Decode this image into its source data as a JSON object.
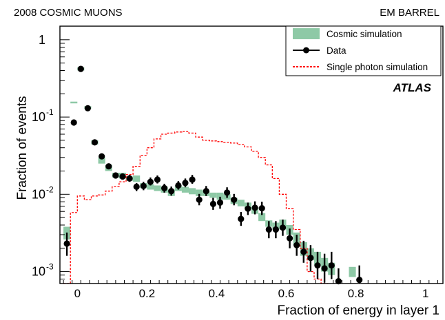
{
  "chart_data": {
    "type": "scatter",
    "corner_left": "2008 COSMIC MUONS",
    "corner_right": "EM BARREL",
    "brand": "ATLAS",
    "xlabel": "Fraction of energy in layer 1",
    "ylabel": "Fraction of events",
    "xlim": [
      -0.05,
      1.05
    ],
    "ylim": [
      0.0007,
      1.5
    ],
    "yscale": "log",
    "xticks": [
      {
        "v": 0,
        "label": "0"
      },
      {
        "v": 0.2,
        "label": "0.2"
      },
      {
        "v": 0.4,
        "label": "0.4"
      },
      {
        "v": 0.6,
        "label": "0.6"
      },
      {
        "v": 0.8,
        "label": "0.8"
      },
      {
        "v": 1.0,
        "label": "1"
      }
    ],
    "yticks": [
      {
        "v": 1,
        "mant": "1",
        "exp": ""
      },
      {
        "v": 0.1,
        "mant": "10",
        "exp": "-1"
      },
      {
        "v": 0.01,
        "mant": "10",
        "exp": "-2"
      },
      {
        "v": 0.001,
        "mant": "10",
        "exp": "-3"
      }
    ],
    "legend_position": "top-right",
    "legend": [
      {
        "label": "Cosmic simulation",
        "style": "box"
      },
      {
        "label": "Data",
        "style": "marker"
      },
      {
        "label": "Single photon simulation",
        "style": "dashed"
      }
    ],
    "colors": {
      "cosmic": "#8ec9a6",
      "data": "#000000",
      "photon": "#ff0000"
    },
    "bin_width": 0.02,
    "cosmic_simulation": [
      {
        "x": -0.03,
        "lo": 0.0026,
        "hi": 0.0038
      },
      {
        "x": -0.01,
        "lo": 0.15,
        "hi": 0.158
      },
      {
        "x": 0.01,
        "lo": 0.4,
        "hi": 0.44
      },
      {
        "x": 0.03,
        "lo": 0.128,
        "hi": 0.138
      },
      {
        "x": 0.05,
        "lo": 0.044,
        "hi": 0.05
      },
      {
        "x": 0.07,
        "lo": 0.025,
        "hi": 0.03
      },
      {
        "x": 0.09,
        "lo": 0.02,
        "hi": 0.024
      },
      {
        "x": 0.11,
        "lo": 0.0165,
        "hi": 0.019
      },
      {
        "x": 0.13,
        "lo": 0.016,
        "hi": 0.019
      },
      {
        "x": 0.15,
        "lo": 0.015,
        "hi": 0.017
      },
      {
        "x": 0.17,
        "lo": 0.0145,
        "hi": 0.0175
      },
      {
        "x": 0.19,
        "lo": 0.012,
        "hi": 0.014
      },
      {
        "x": 0.21,
        "lo": 0.0115,
        "hi": 0.0135
      },
      {
        "x": 0.23,
        "lo": 0.011,
        "hi": 0.013
      },
      {
        "x": 0.25,
        "lo": 0.0105,
        "hi": 0.0125
      },
      {
        "x": 0.27,
        "lo": 0.0095,
        "hi": 0.0115
      },
      {
        "x": 0.29,
        "lo": 0.011,
        "hi": 0.013
      },
      {
        "x": 0.31,
        "lo": 0.0105,
        "hi": 0.0125
      },
      {
        "x": 0.33,
        "lo": 0.01,
        "hi": 0.012
      },
      {
        "x": 0.35,
        "lo": 0.0095,
        "hi": 0.0115
      },
      {
        "x": 0.37,
        "lo": 0.0095,
        "hi": 0.011
      },
      {
        "x": 0.39,
        "lo": 0.009,
        "hi": 0.0105
      },
      {
        "x": 0.41,
        "lo": 0.0085,
        "hi": 0.0105
      },
      {
        "x": 0.43,
        "lo": 0.0085,
        "hi": 0.01
      },
      {
        "x": 0.45,
        "lo": 0.0075,
        "hi": 0.009
      },
      {
        "x": 0.47,
        "lo": 0.007,
        "hi": 0.0085
      },
      {
        "x": 0.49,
        "lo": 0.0065,
        "hi": 0.0078
      },
      {
        "x": 0.51,
        "lo": 0.0056,
        "hi": 0.0068
      },
      {
        "x": 0.53,
        "lo": 0.0045,
        "hi": 0.0057
      },
      {
        "x": 0.55,
        "lo": 0.0038,
        "hi": 0.0046
      },
      {
        "x": 0.57,
        "lo": 0.0035,
        "hi": 0.0043
      },
      {
        "x": 0.59,
        "lo": 0.0035,
        "hi": 0.0047
      },
      {
        "x": 0.61,
        "lo": 0.003,
        "hi": 0.004
      },
      {
        "x": 0.63,
        "lo": 0.0022,
        "hi": 0.0032
      },
      {
        "x": 0.65,
        "lo": 0.0016,
        "hi": 0.0024
      },
      {
        "x": 0.67,
        "lo": 0.0014,
        "hi": 0.002
      },
      {
        "x": 0.69,
        "lo": 0.0012,
        "hi": 0.0018
      },
      {
        "x": 0.71,
        "lo": 0.001,
        "hi": 0.0015
      },
      {
        "x": 0.73,
        "lo": 0.0009,
        "hi": 0.0013
      },
      {
        "x": 0.79,
        "lo": 0.00085,
        "hi": 0.00115
      }
    ],
    "data": [
      {
        "x": -0.03,
        "y": 0.0023,
        "lo": 0.0016,
        "hi": 0.0032
      },
      {
        "x": -0.01,
        "y": 0.085
      },
      {
        "x": 0.01,
        "y": 0.42
      },
      {
        "x": 0.03,
        "y": 0.13
      },
      {
        "x": 0.05,
        "y": 0.047
      },
      {
        "x": 0.07,
        "y": 0.031
      },
      {
        "x": 0.09,
        "y": 0.023
      },
      {
        "x": 0.11,
        "y": 0.0175
      },
      {
        "x": 0.13,
        "y": 0.017
      },
      {
        "x": 0.15,
        "y": 0.016,
        "lo": 0.0145,
        "hi": 0.0178
      },
      {
        "x": 0.17,
        "y": 0.0125,
        "lo": 0.011,
        "hi": 0.014
      },
      {
        "x": 0.19,
        "y": 0.0128,
        "lo": 0.0113,
        "hi": 0.0145
      },
      {
        "x": 0.21,
        "y": 0.0145,
        "lo": 0.013,
        "hi": 0.0165
      },
      {
        "x": 0.23,
        "y": 0.0155,
        "lo": 0.0138,
        "hi": 0.0175
      },
      {
        "x": 0.25,
        "y": 0.012,
        "lo": 0.0105,
        "hi": 0.0137
      },
      {
        "x": 0.27,
        "y": 0.011,
        "lo": 0.0096,
        "hi": 0.0126
      },
      {
        "x": 0.29,
        "y": 0.013,
        "lo": 0.0115,
        "hi": 0.0148
      },
      {
        "x": 0.31,
        "y": 0.014,
        "lo": 0.0123,
        "hi": 0.016
      },
      {
        "x": 0.33,
        "y": 0.0155,
        "lo": 0.0137,
        "hi": 0.0178
      },
      {
        "x": 0.35,
        "y": 0.0085,
        "lo": 0.0072,
        "hi": 0.0101
      },
      {
        "x": 0.37,
        "y": 0.011,
        "lo": 0.0095,
        "hi": 0.0128
      },
      {
        "x": 0.39,
        "y": 0.0075,
        "lo": 0.0063,
        "hi": 0.009
      },
      {
        "x": 0.41,
        "y": 0.0078,
        "lo": 0.0065,
        "hi": 0.0093
      },
      {
        "x": 0.43,
        "y": 0.0105,
        "lo": 0.009,
        "hi": 0.0123
      },
      {
        "x": 0.45,
        "y": 0.0085,
        "lo": 0.0072,
        "hi": 0.0101
      },
      {
        "x": 0.47,
        "y": 0.0048,
        "lo": 0.0039,
        "hi": 0.0059
      },
      {
        "x": 0.49,
        "y": 0.0065,
        "lo": 0.0054,
        "hi": 0.0078
      },
      {
        "x": 0.51,
        "y": 0.0067,
        "lo": 0.0055,
        "hi": 0.0081
      },
      {
        "x": 0.53,
        "y": 0.0066,
        "lo": 0.0054,
        "hi": 0.008
      },
      {
        "x": 0.55,
        "y": 0.0035,
        "lo": 0.0027,
        "hi": 0.0045
      },
      {
        "x": 0.57,
        "y": 0.0035,
        "lo": 0.0027,
        "hi": 0.0045
      },
      {
        "x": 0.59,
        "y": 0.0037,
        "lo": 0.0029,
        "hi": 0.0047
      },
      {
        "x": 0.61,
        "y": 0.0027,
        "lo": 0.002,
        "hi": 0.0036
      },
      {
        "x": 0.63,
        "y": 0.0022,
        "lo": 0.0016,
        "hi": 0.003
      },
      {
        "x": 0.65,
        "y": 0.0018,
        "lo": 0.0013,
        "hi": 0.0025
      },
      {
        "x": 0.67,
        "y": 0.0015,
        "lo": 0.001,
        "hi": 0.0022
      },
      {
        "x": 0.69,
        "y": 0.0012,
        "lo": 0.0008,
        "hi": 0.0018
      },
      {
        "x": 0.71,
        "y": 0.0011,
        "lo": 0.00072,
        "hi": 0.0017
      },
      {
        "x": 0.73,
        "y": 0.0012,
        "lo": 0.0008,
        "hi": 0.0018
      },
      {
        "x": 0.75,
        "y": 0.00075,
        "lo": 0.00072,
        "hi": 0.0011
      },
      {
        "x": 0.81,
        "y": 0.00078,
        "lo": 0.00072,
        "hi": 0.0012
      }
    ],
    "single_photon_simulation": {
      "bin_edges": [
        -0.04,
        -0.02,
        0.0,
        0.02,
        0.04,
        0.06,
        0.08,
        0.1,
        0.12,
        0.14,
        0.16,
        0.18,
        0.2,
        0.22,
        0.24,
        0.26,
        0.28,
        0.3,
        0.32,
        0.34,
        0.36,
        0.38,
        0.4,
        0.42,
        0.44,
        0.46,
        0.48,
        0.5,
        0.52,
        0.54,
        0.56,
        0.58,
        0.6,
        0.62,
        0.64,
        0.66,
        0.68,
        0.7,
        0.72
      ],
      "values": [
        0.0005,
        0.0058,
        0.0095,
        0.0085,
        0.0095,
        0.0098,
        0.011,
        0.0125,
        0.0145,
        0.018,
        0.023,
        0.032,
        0.04,
        0.052,
        0.06,
        0.062,
        0.064,
        0.065,
        0.062,
        0.055,
        0.05,
        0.049,
        0.048,
        0.047,
        0.046,
        0.044,
        0.041,
        0.036,
        0.03,
        0.024,
        0.016,
        0.01,
        0.0065,
        0.0035,
        0.002,
        0.001,
        0.0008,
        0.0005
      ]
    }
  }
}
